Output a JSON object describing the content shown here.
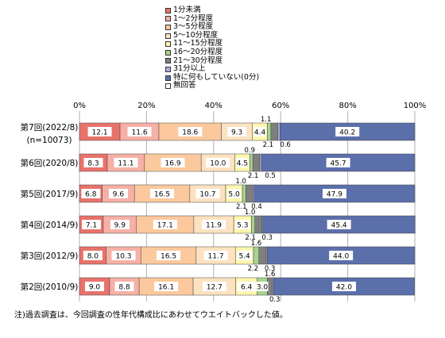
{
  "chart_data": {
    "type": "bar",
    "orientation": "horizontal",
    "stacked": true,
    "xlim": [
      0,
      100
    ],
    "x_ticks": [
      "0%",
      "20%",
      "40%",
      "60%",
      "80%",
      "100%"
    ],
    "legend_position": "top",
    "categories": [
      {
        "line1": "第7回(2022/8)",
        "line2": "(n=10073)"
      },
      {
        "line1": "第6回(2020/8)",
        "line2": ""
      },
      {
        "line1": "第5回(2017/9)",
        "line2": ""
      },
      {
        "line1": "第4回(2014/9)",
        "line2": ""
      },
      {
        "line1": "第3回(2012/9)",
        "line2": ""
      },
      {
        "line1": "第2回(2010/9)",
        "line2": ""
      }
    ],
    "series": [
      {
        "name": "1分未満",
        "color": "#e8736b",
        "values": [
          12.1,
          8.3,
          6.8,
          7.1,
          8.0,
          9.0
        ]
      },
      {
        "name": "1～2分程度",
        "color": "#f6b0a6",
        "values": [
          11.6,
          11.1,
          9.6,
          9.9,
          10.3,
          8.8
        ]
      },
      {
        "name": "3～5分程度",
        "color": "#fbc99d",
        "values": [
          18.6,
          16.9,
          16.5,
          17.1,
          16.5,
          16.1
        ]
      },
      {
        "name": "5～10分程度",
        "color": "#fde2c1",
        "values": [
          9.3,
          10.0,
          10.7,
          11.9,
          11.7,
          12.7
        ]
      },
      {
        "name": "11～15分程度",
        "color": "#fdf6ae",
        "values": [
          4.4,
          4.5,
          5.0,
          5.3,
          5.4,
          6.4
        ]
      },
      {
        "name": "16～20分程度",
        "color": "#a6d490",
        "values": [
          1.1,
          0.9,
          1.0,
          1.0,
          1.6,
          3.0
        ]
      },
      {
        "name": "21～30分程度",
        "color": "#7f7f7f",
        "values": [
          2.1,
          2.1,
          2.1,
          2.1,
          2.2,
          1.6
        ]
      },
      {
        "name": "31分以上",
        "color": "#aab1de",
        "values": [
          0.6,
          0.5,
          0.4,
          0.3,
          0.3,
          0.3
        ]
      },
      {
        "name": "特に何もしていない(0分)",
        "color": "#5b6faa",
        "values": [
          40.2,
          45.7,
          47.9,
          45.4,
          44.0,
          42.0
        ]
      },
      {
        "name": "無回答",
        "color": "#ffffff",
        "values": [
          0,
          0,
          0,
          0,
          0,
          0
        ]
      }
    ],
    "labels": [
      [
        {
          "s": 0,
          "text": "12.1",
          "pos": "in"
        },
        {
          "s": 1,
          "text": "11.6",
          "pos": "in"
        },
        {
          "s": 2,
          "text": "18.6",
          "pos": "in"
        },
        {
          "s": 3,
          "text": "9.3",
          "pos": "in"
        },
        {
          "s": 4,
          "text": "4.4",
          "pos": "in"
        },
        {
          "s": 5,
          "text": "1.1",
          "pos": "above",
          "dx": -4
        },
        {
          "s": 6,
          "text": "2.1",
          "pos": "below",
          "dx": -8
        },
        {
          "s": 7,
          "text": "0.6",
          "pos": "below",
          "dx": 8
        },
        {
          "s": 8,
          "text": "40.2",
          "pos": "in"
        }
      ],
      [
        {
          "s": 0,
          "text": "8.3",
          "pos": "in"
        },
        {
          "s": 1,
          "text": "11.1",
          "pos": "in"
        },
        {
          "s": 2,
          "text": "16.9",
          "pos": "in"
        },
        {
          "s": 3,
          "text": "10.0",
          "pos": "in"
        },
        {
          "s": 4,
          "text": "4.5",
          "pos": "in"
        },
        {
          "s": 5,
          "text": "0.9",
          "pos": "above",
          "dx": -2
        },
        {
          "s": 6,
          "text": "2.1",
          "pos": "below",
          "dx": -4
        },
        {
          "s": 7,
          "text": "0.5",
          "pos": "below",
          "dx": 12
        },
        {
          "s": 8,
          "text": "45.7",
          "pos": "in"
        }
      ],
      [
        {
          "s": 0,
          "text": "6.8",
          "pos": "in"
        },
        {
          "s": 1,
          "text": "9.6",
          "pos": "in"
        },
        {
          "s": 2,
          "text": "16.5",
          "pos": "in"
        },
        {
          "s": 3,
          "text": "10.7",
          "pos": "in"
        },
        {
          "s": 4,
          "text": "5.0",
          "pos": "in"
        },
        {
          "s": 5,
          "text": "1.0",
          "pos": "above",
          "dx": -4
        },
        {
          "s": 6,
          "text": "2.1",
          "pos": "below",
          "dx": -10
        },
        {
          "s": 7,
          "text": "0.4",
          "pos": "below",
          "dx": 4
        },
        {
          "s": 8,
          "text": "47.9",
          "pos": "in"
        }
      ],
      [
        {
          "s": 0,
          "text": "7.1",
          "pos": "in"
        },
        {
          "s": 1,
          "text": "9.9",
          "pos": "in"
        },
        {
          "s": 2,
          "text": "17.1",
          "pos": "in"
        },
        {
          "s": 3,
          "text": "11.9",
          "pos": "in"
        },
        {
          "s": 4,
          "text": "5.3",
          "pos": "in"
        },
        {
          "s": 5,
          "text": "1.0",
          "pos": "above",
          "dx": -4
        },
        {
          "s": 6,
          "text": "2.1",
          "pos": "below",
          "dx": -10
        },
        {
          "s": 7,
          "text": "0.3",
          "pos": "below",
          "dx": 6
        },
        {
          "s": 8,
          "text": "45.4",
          "pos": "in"
        }
      ],
      [
        {
          "s": 0,
          "text": "8.0",
          "pos": "in"
        },
        {
          "s": 1,
          "text": "10.3",
          "pos": "in"
        },
        {
          "s": 2,
          "text": "16.5",
          "pos": "in"
        },
        {
          "s": 3,
          "text": "11.7",
          "pos": "in"
        },
        {
          "s": 4,
          "text": "5.4",
          "pos": "in"
        },
        {
          "s": 5,
          "text": "1.6",
          "pos": "above",
          "dx": 0
        },
        {
          "s": 6,
          "text": "2.2",
          "pos": "below",
          "dx": -12
        },
        {
          "s": 7,
          "text": "0.3",
          "pos": "below",
          "dx": 4
        },
        {
          "s": 8,
          "text": "44.0",
          "pos": "in"
        }
      ],
      [
        {
          "s": 0,
          "text": "9.0",
          "pos": "in"
        },
        {
          "s": 1,
          "text": "8.8",
          "pos": "in"
        },
        {
          "s": 2,
          "text": "16.1",
          "pos": "in"
        },
        {
          "s": 3,
          "text": "12.7",
          "pos": "in"
        },
        {
          "s": 4,
          "text": "6.4",
          "pos": "in"
        },
        {
          "s": 5,
          "text": "3.0",
          "pos": "in"
        },
        {
          "s": 6,
          "text": "1.6",
          "pos": "above",
          "dx": 0
        },
        {
          "s": 7,
          "text": "0.3",
          "pos": "below",
          "dx": 2
        },
        {
          "s": 8,
          "text": "42.0",
          "pos": "in"
        }
      ]
    ]
  },
  "note": "注)過去調査は、今回調査の性年代構成比にあわせてウエイトバックした値。"
}
